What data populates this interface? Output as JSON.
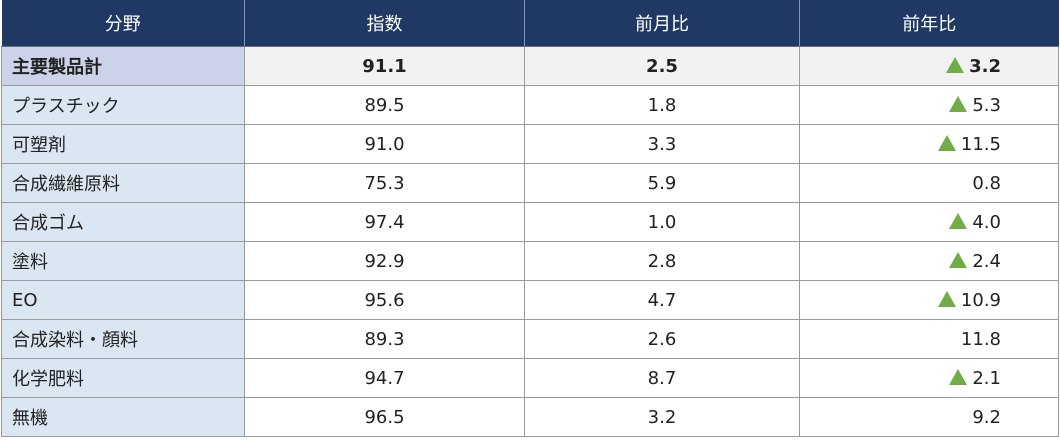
{
  "header": {
    "category": "分野",
    "index": "指数",
    "mom": "前月比",
    "yoy": "前年比"
  },
  "colors": {
    "header_bg": "#1f3864",
    "category_bg": "#dbe6f3",
    "total_category_bg": "#ccd3e9",
    "triangle": "#70ad47"
  },
  "rows": [
    {
      "category": "主要製品計",
      "index": "91.1",
      "mom": "2.5",
      "yoy": "3.2",
      "yoy_mark": "up-triangle-icon",
      "total": true
    },
    {
      "category": "プラスチック",
      "index": "89.5",
      "mom": "1.8",
      "yoy": "5.3",
      "yoy_mark": "up-triangle-icon"
    },
    {
      "category": "可塑剤",
      "index": "91.0",
      "mom": "3.3",
      "yoy": "11.5",
      "yoy_mark": "up-triangle-icon"
    },
    {
      "category": "合成繊維原料",
      "index": "75.3",
      "mom": "5.9",
      "yoy": "0.8",
      "yoy_mark": ""
    },
    {
      "category": "合成ゴム",
      "index": "97.4",
      "mom": "1.0",
      "yoy": "4.0",
      "yoy_mark": "up-triangle-icon"
    },
    {
      "category": "塗料",
      "index": "92.9",
      "mom": "2.8",
      "yoy": "2.4",
      "yoy_mark": "up-triangle-icon"
    },
    {
      "category": "EO",
      "index": "95.6",
      "mom": "4.7",
      "yoy": "10.9",
      "yoy_mark": "up-triangle-icon"
    },
    {
      "category": "合成染料・顔料",
      "index": "89.3",
      "mom": "2.6",
      "yoy": "11.8",
      "yoy_mark": ""
    },
    {
      "category": "化学肥料",
      "index": "94.7",
      "mom": "8.7",
      "yoy": "2.1",
      "yoy_mark": "up-triangle-icon"
    },
    {
      "category": "無機",
      "index": "96.5",
      "mom": "3.2",
      "yoy": "9.2",
      "yoy_mark": ""
    }
  ]
}
